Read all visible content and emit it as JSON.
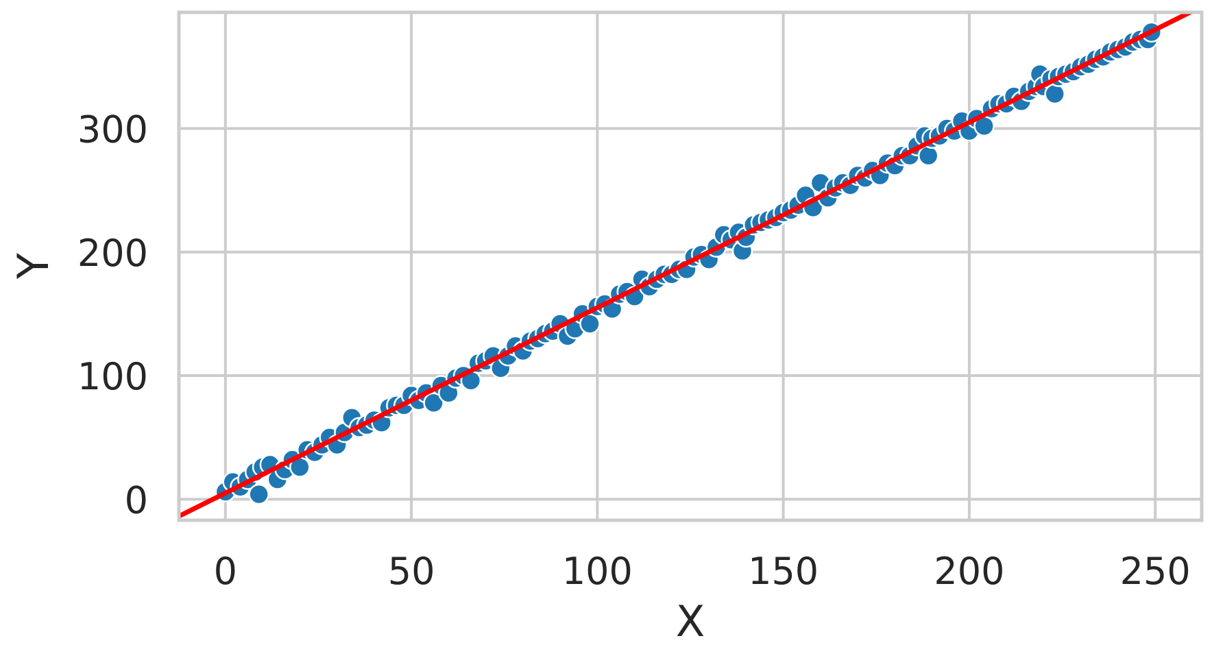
{
  "chart_data": {
    "type": "scatter",
    "title": "",
    "xlabel": "X",
    "ylabel": "Y",
    "xlim": [
      -12.5,
      262.5
    ],
    "ylim": [
      -17,
      394
    ],
    "xticks": [
      0,
      50,
      100,
      150,
      200,
      250
    ],
    "yticks": [
      0,
      100,
      200,
      300
    ],
    "xtick_labels": [
      "0",
      "50",
      "100",
      "150",
      "200",
      "250"
    ],
    "ytick_labels": [
      "0",
      "100",
      "200",
      "300"
    ],
    "grid": true,
    "legend": "none",
    "colors": {
      "points": "#1f77b4",
      "fit_line": "#ff0000",
      "grid": "#cccccc",
      "frame": "#cccccc",
      "text": "#262626"
    },
    "fit_line": {
      "slope": 1.5,
      "intercept": 5
    },
    "series": [
      {
        "values": [
          [
            0,
            6
          ],
          [
            2,
            14
          ],
          [
            4,
            10
          ],
          [
            6,
            16
          ],
          [
            8,
            22
          ],
          [
            9,
            4
          ],
          [
            10,
            26
          ],
          [
            12,
            28
          ],
          [
            14,
            16
          ],
          [
            16,
            24
          ],
          [
            18,
            32
          ],
          [
            20,
            26
          ],
          [
            22,
            40
          ],
          [
            24,
            38
          ],
          [
            26,
            44
          ],
          [
            28,
            50
          ],
          [
            30,
            44
          ],
          [
            32,
            54
          ],
          [
            34,
            66
          ],
          [
            36,
            58
          ],
          [
            38,
            60
          ],
          [
            40,
            64
          ],
          [
            42,
            62
          ],
          [
            44,
            74
          ],
          [
            46,
            76
          ],
          [
            48,
            76
          ],
          [
            50,
            84
          ],
          [
            52,
            80
          ],
          [
            54,
            86
          ],
          [
            56,
            78
          ],
          [
            58,
            92
          ],
          [
            60,
            86
          ],
          [
            62,
            98
          ],
          [
            64,
            100
          ],
          [
            66,
            96
          ],
          [
            68,
            110
          ],
          [
            70,
            112
          ],
          [
            72,
            116
          ],
          [
            74,
            106
          ],
          [
            76,
            116
          ],
          [
            78,
            124
          ],
          [
            80,
            120
          ],
          [
            82,
            128
          ],
          [
            84,
            130
          ],
          [
            86,
            134
          ],
          [
            88,
            136
          ],
          [
            90,
            142
          ],
          [
            92,
            132
          ],
          [
            94,
            138
          ],
          [
            96,
            150
          ],
          [
            98,
            142
          ],
          [
            100,
            156
          ],
          [
            102,
            158
          ],
          [
            104,
            154
          ],
          [
            106,
            166
          ],
          [
            108,
            168
          ],
          [
            110,
            164
          ],
          [
            112,
            178
          ],
          [
            114,
            172
          ],
          [
            116,
            178
          ],
          [
            118,
            182
          ],
          [
            120,
            182
          ],
          [
            122,
            186
          ],
          [
            124,
            186
          ],
          [
            126,
            196
          ],
          [
            128,
            198
          ],
          [
            130,
            194
          ],
          [
            132,
            204
          ],
          [
            134,
            214
          ],
          [
            136,
            210
          ],
          [
            138,
            216
          ],
          [
            139,
            201
          ],
          [
            140,
            212
          ],
          [
            142,
            222
          ],
          [
            144,
            224
          ],
          [
            146,
            226
          ],
          [
            148,
            228
          ],
          [
            150,
            232
          ],
          [
            152,
            234
          ],
          [
            154,
            238
          ],
          [
            156,
            246
          ],
          [
            158,
            236
          ],
          [
            160,
            256
          ],
          [
            162,
            244
          ],
          [
            164,
            252
          ],
          [
            166,
            256
          ],
          [
            168,
            254
          ],
          [
            170,
            262
          ],
          [
            172,
            260
          ],
          [
            174,
            266
          ],
          [
            176,
            262
          ],
          [
            178,
            272
          ],
          [
            180,
            270
          ],
          [
            182,
            278
          ],
          [
            184,
            278
          ],
          [
            186,
            286
          ],
          [
            188,
            294
          ],
          [
            189,
            278
          ],
          [
            190,
            292
          ],
          [
            192,
            294
          ],
          [
            194,
            300
          ],
          [
            196,
            298
          ],
          [
            198,
            306
          ],
          [
            200,
            298
          ],
          [
            202,
            308
          ],
          [
            204,
            302
          ],
          [
            206,
            316
          ],
          [
            208,
            320
          ],
          [
            210,
            320
          ],
          [
            212,
            326
          ],
          [
            214,
            322
          ],
          [
            216,
            330
          ],
          [
            218,
            334
          ],
          [
            219,
            344
          ],
          [
            220,
            334
          ],
          [
            222,
            340
          ],
          [
            223,
            328
          ],
          [
            224,
            342
          ],
          [
            226,
            344
          ],
          [
            228,
            346
          ],
          [
            230,
            350
          ],
          [
            232,
            352
          ],
          [
            234,
            356
          ],
          [
            236,
            358
          ],
          [
            238,
            362
          ],
          [
            240,
            364
          ],
          [
            242,
            366
          ],
          [
            244,
            370
          ],
          [
            246,
            372
          ],
          [
            248,
            372
          ],
          [
            249,
            378
          ]
        ]
      }
    ]
  }
}
